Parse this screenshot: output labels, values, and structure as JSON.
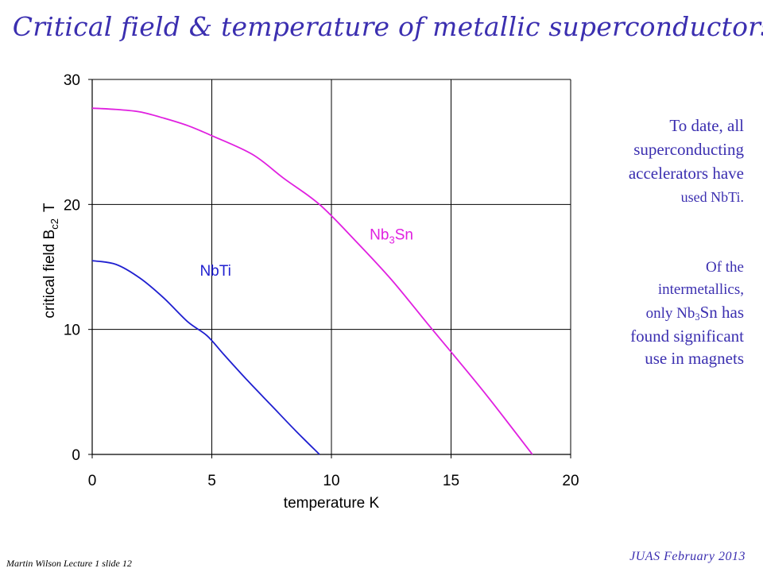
{
  "slide": {
    "title": "Critical field & temperature of metallic superconductors",
    "side_note_1": {
      "line1": "To date, all",
      "line2": "superconducting",
      "line3": "accelerators have",
      "line4": "used NbTi."
    },
    "side_note_2": {
      "line1": "Of the",
      "line2": "intermetallics,",
      "line3_pre": "only Nb",
      "line3_sub": "3",
      "line3_post": "Sn has",
      "line4": "found significant",
      "line5": "use in magnets"
    },
    "footer_left": "Martin Wilson Lecture 1 slide 12",
    "footer_right": "JUAS February 2013"
  },
  "colors": {
    "text_accent": "#3b2fb0",
    "nbti": "#1f1fd0",
    "nb3sn": "#e020e0",
    "grid": "#000000"
  },
  "chart_data": {
    "type": "line",
    "xlabel": "temperature K",
    "ylabel_main": "critical field  B",
    "ylabel_sub": "c2",
    "ylabel_unit": "T",
    "xlim": [
      0,
      20
    ],
    "ylim": [
      0,
      30
    ],
    "xticks": [
      "0",
      "5",
      "10",
      "15",
      "20"
    ],
    "yticks": [
      "0",
      "10",
      "20",
      "30"
    ],
    "grid": true,
    "series": [
      {
        "name": "NbTi",
        "label_main": "NbTi",
        "label_sub": "",
        "label_post": "",
        "label_at": [
          4.5,
          14.3
        ],
        "color": "#1f1fd0",
        "x": [
          0,
          1,
          2,
          3,
          4,
          4.8,
          5.5,
          6.5,
          7.5,
          8.5,
          9.5
        ],
        "y": [
          15.5,
          15.2,
          14.1,
          12.5,
          10.6,
          9.5,
          8.0,
          5.9,
          3.9,
          1.9,
          0
        ]
      },
      {
        "name": "Nb3Sn",
        "label_main": "Nb",
        "label_sub": "3",
        "label_post": "Sn",
        "label_at": [
          11.6,
          17.2
        ],
        "color": "#e020e0",
        "x": [
          0,
          1,
          2,
          3,
          4,
          5,
          6.7,
          8,
          9.5,
          11,
          12.5,
          14,
          15,
          16.5,
          18.4
        ],
        "y": [
          27.7,
          27.6,
          27.4,
          26.9,
          26.3,
          25.5,
          24.0,
          22.1,
          20.0,
          17.1,
          14.0,
          10.5,
          8.2,
          4.7,
          0
        ]
      }
    ]
  }
}
